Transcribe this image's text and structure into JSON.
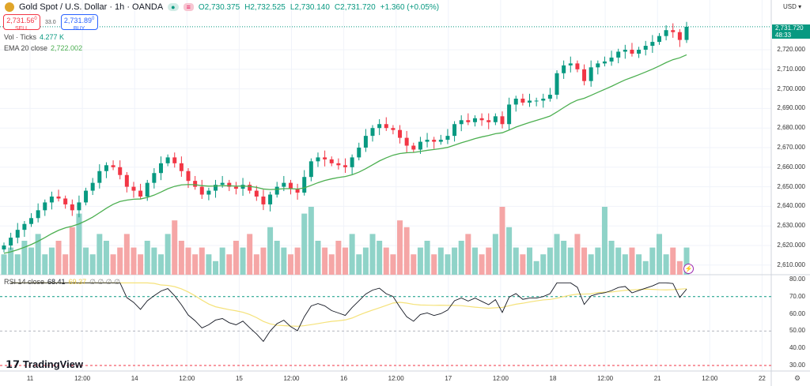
{
  "header": {
    "title": "Gold Spot / U.S. Dollar · 1h · OANDA",
    "open": "O2,730.375",
    "high": "H2,732.525",
    "low": "L2,730.140",
    "close": "C2,731.720",
    "change": "+1.360 (+0.05%)"
  },
  "trade": {
    "sell_price": "2,731.56",
    "sell_sup": "0",
    "sell_label": "SELL",
    "spread": "33.0",
    "buy_price": "2,731.89",
    "buy_sup": "0",
    "buy_label": "BUY"
  },
  "indicators": {
    "vol_label": "Vol · Ticks",
    "vol_value": "4.277 K",
    "ema_label": "EMA 20 close",
    "ema_value": "2,722.002",
    "rsi_label": "RSI 14 close",
    "rsi_value": "68.41",
    "rsi_ma_value": "69.37",
    "rsi_extra": "∅ ∅ ∅ ∅"
  },
  "price_axis": {
    "currency": "USD",
    "current_price": "2,731.720",
    "countdown": "48:33",
    "labels": [
      "2,720.000",
      "2,710.000",
      "2,700.000",
      "2,690.000",
      "2,680.000",
      "2,670.000",
      "2,660.000",
      "2,650.000",
      "2,640.000",
      "2,630.000",
      "2,620.000",
      "2,610.000"
    ]
  },
  "rsi_axis": {
    "labels": [
      "80.00",
      "70.00",
      "60.00",
      "50.00",
      "40.00",
      "30.00"
    ]
  },
  "time_axis": [
    "11",
    "12:00",
    "14",
    "12:00",
    "15",
    "12:00",
    "16",
    "12:00",
    "17",
    "12:00",
    "18",
    "12:00",
    "21",
    "12:00",
    "22"
  ],
  "brand": "TradingView",
  "colors": {
    "up": "#089981",
    "down": "#f23645",
    "vol_up": "#8fd3c8",
    "vol_down": "#f5a6a6",
    "ema": "#4caf50",
    "rsi": "#131722",
    "rsi_ma": "#f5e27a"
  },
  "chart_data": {
    "type": "candlestick",
    "closes": [
      2620,
      2624,
      2628,
      2631,
      2634,
      2638,
      2642,
      2645,
      2644,
      2641,
      2638,
      2642,
      2648,
      2652,
      2658,
      2661,
      2660,
      2656,
      2650,
      2648,
      2645,
      2652,
      2657,
      2662,
      2665,
      2662,
      2658,
      2653,
      2650,
      2646,
      2648,
      2651,
      2652,
      2650,
      2649,
      2651,
      2648,
      2645,
      2641,
      2646,
      2650,
      2652,
      2649,
      2647,
      2655,
      2663,
      2665,
      2664,
      2662,
      2661,
      2660,
      2665,
      2670,
      2676,
      2680,
      2682,
      2680,
      2679,
      2675,
      2671,
      2669,
      2673,
      2674,
      2673,
      2674,
      2676,
      2682,
      2684,
      2683,
      2685,
      2684,
      2683,
      2686,
      2682,
      2692,
      2695,
      2693,
      2694,
      2694,
      2695,
      2697,
      2708,
      2712,
      2713,
      2710,
      2704,
      2711,
      2713,
      2714,
      2716,
      2719,
      2720,
      2718,
      2720,
      2722,
      2724,
      2727,
      2730,
      2729,
      2725,
      2731.72
    ],
    "volumes_k": [
      3,
      4,
      3,
      5,
      4,
      6,
      3,
      4,
      5,
      3,
      7,
      9,
      4,
      3,
      6,
      5,
      3,
      4,
      6,
      4,
      3,
      5,
      4,
      3,
      6,
      8,
      5,
      4,
      3,
      4,
      3,
      2,
      4,
      3,
      5,
      4,
      6,
      3,
      4,
      7,
      5,
      4,
      3,
      4,
      9,
      10,
      5,
      4,
      3,
      5,
      4,
      6,
      3,
      4,
      6,
      5,
      4,
      3,
      8,
      7,
      3,
      4,
      5,
      3,
      4,
      3,
      4,
      5,
      6,
      4,
      3,
      4,
      6,
      10,
      7,
      4,
      3,
      4,
      2,
      3,
      4,
      6,
      5,
      4,
      6,
      4,
      3,
      4,
      10,
      5,
      4,
      3,
      4,
      3,
      2,
      4,
      6,
      3,
      4,
      2,
      4
    ]
  }
}
